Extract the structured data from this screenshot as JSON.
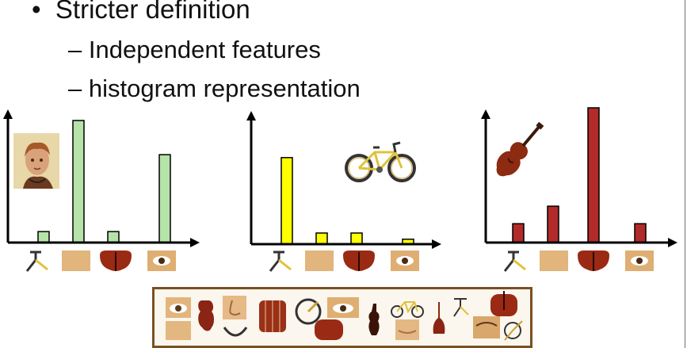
{
  "slide": {
    "bullet": "•",
    "title": "Stricter definition",
    "sub1": "– Independent features",
    "sub2": "– histogram representation"
  },
  "colors": {
    "face": "#b5e3a9",
    "bike": "#ffff00",
    "violin": "#b22a2a",
    "frame": "#7a5020"
  },
  "icons": [
    "portrait-icon",
    "bicycle-icon",
    "violin-icon"
  ],
  "chart_data": [
    {
      "type": "bar",
      "name": "face",
      "categories": [
        "bicycle-part",
        "skin-patch",
        "violin-body",
        "eye"
      ],
      "values": [
        0.09,
        1.0,
        0.09,
        0.72
      ],
      "ylim": [
        0,
        1.0
      ],
      "color": "#b5e3a9"
    },
    {
      "type": "bar",
      "name": "bicycle",
      "categories": [
        "bicycle-part",
        "skin-patch",
        "violin-body",
        "eye"
      ],
      "values": [
        0.7,
        0.09,
        0.09,
        0.04
      ],
      "ylim": [
        0,
        1.0
      ],
      "color": "#ffff00"
    },
    {
      "type": "bar",
      "name": "violin",
      "categories": [
        "bicycle-part",
        "skin-patch",
        "violin-body",
        "eye"
      ],
      "values": [
        0.14,
        0.27,
        1.0,
        0.14
      ],
      "ylim": [
        0,
        1.0
      ],
      "color": "#b22a2a"
    }
  ]
}
